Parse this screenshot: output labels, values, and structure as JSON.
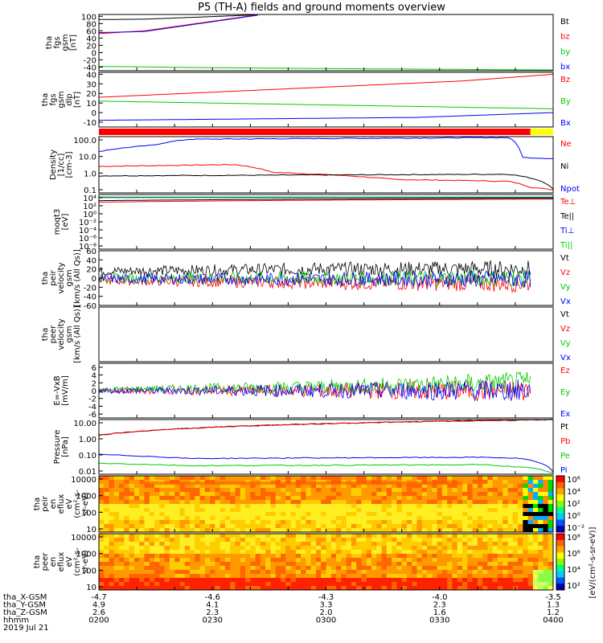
{
  "title": "P5 (TH-A) fields and ground moments overview",
  "chart_data": [
    {
      "type": "line",
      "panel": "fgs_gsm_mag",
      "ylabel": [
        "tha",
        "fgs",
        "gsm",
        "[nT]"
      ],
      "ylim": [
        -50,
        105
      ],
      "yticks": [
        100,
        80,
        60,
        40,
        20,
        0,
        -20,
        -40
      ],
      "series": [
        {
          "name": "Bt",
          "color": "#000000",
          "x": [
            0.0,
            0.1,
            0.35
          ],
          "y": [
            91,
            92,
            104
          ]
        },
        {
          "name": "bz",
          "color": "#ff0000",
          "x": [
            0.0,
            0.1,
            0.35
          ],
          "y": [
            52,
            60,
            104
          ]
        },
        {
          "name": "by",
          "color": "#00cc00",
          "x": [
            0.0,
            0.2,
            0.5,
            1.0
          ],
          "y": [
            -38,
            -41,
            -44,
            -48
          ]
        },
        {
          "name": "bx",
          "color": "#0000ff",
          "x": [
            0.0,
            0.1,
            0.35
          ],
          "y": [
            55,
            58,
            103
          ]
        }
      ]
    },
    {
      "type": "line",
      "panel": "fgs_gsm_components",
      "ylabel": [
        "tha",
        "fgs",
        "gsm",
        "dlp",
        "[nT]"
      ],
      "ylim": [
        -15,
        42
      ],
      "yticks": [
        40,
        30,
        20,
        10,
        0,
        -10
      ],
      "series": [
        {
          "name": "Bz",
          "color": "#ff0000",
          "x": [
            0.0,
            0.8,
            1.0
          ],
          "y": [
            16,
            33,
            40
          ]
        },
        {
          "name": "By",
          "color": "#00cc00",
          "x": [
            0.0,
            1.0
          ],
          "y": [
            12,
            4
          ]
        },
        {
          "name": "Bx",
          "color": "#0000ff",
          "x": [
            0.0,
            0.7,
            1.0
          ],
          "y": [
            -8,
            -5,
            0
          ]
        }
      ]
    },
    {
      "type": "line",
      "panel": "density",
      "ylabel": [
        "Density",
        "[1/cc]",
        "[cm-3]"
      ],
      "yscale": "log",
      "ylim": [
        0.05,
        300
      ],
      "yticks": [
        "100.0",
        "10.0",
        "1.0",
        "0.1"
      ],
      "series": [
        {
          "name": "Ne",
          "color": "#ff0000",
          "x": [
            0.0,
            0.3,
            0.38,
            0.65,
            0.9,
            0.95,
            1.0
          ],
          "y": [
            3,
            4,
            1.2,
            0.4,
            0.3,
            0.12,
            0.08
          ]
        },
        {
          "name": "Ni",
          "color": "#000000",
          "x": [
            0.0,
            0.5,
            0.9,
            0.95,
            1.0
          ],
          "y": [
            0.7,
            0.8,
            0.9,
            0.5,
            0.09
          ]
        },
        {
          "name": "Npot",
          "color": "#0000ff",
          "x": [
            0.0,
            0.12,
            0.2,
            0.9,
            0.93,
            1.0
          ],
          "y": [
            30,
            80,
            200,
            260,
            12,
            10
          ]
        }
      ]
    },
    {
      "type": "line",
      "panel": "temperature",
      "ylabel": [
        "moqt3",
        "[eV]"
      ],
      "yscale": "log",
      "ylim": [
        1e-09,
        30
      ],
      "yticks": [
        "10⁴",
        "10²",
        "10⁰",
        "10⁻²",
        "10⁻⁴",
        "10⁻⁶",
        "10⁻⁸"
      ],
      "series": [
        {
          "name": "Te⊥",
          "color": "#ff0000",
          "x": [
            0.0,
            1.0
          ],
          "y": [
            1,
            4
          ]
        },
        {
          "name": "Te||",
          "color": "#000000",
          "x": [
            0.0,
            1.0
          ],
          "y": [
            2,
            6
          ]
        },
        {
          "name": "Ti⊥",
          "color": "#0000ff",
          "x": [
            0.0,
            1.0
          ],
          "y": [
            8,
            8
          ]
        },
        {
          "name": "Ti||",
          "color": "#00cc00",
          "x": [
            0.0,
            1.0
          ],
          "y": [
            10,
            10
          ]
        }
      ]
    },
    {
      "type": "line",
      "panel": "peir_velocity",
      "ylabel": [
        "tha",
        "peir",
        "velocity",
        "gsm",
        "[km/s (All Qs)]"
      ],
      "ylim": [
        -60,
        60
      ],
      "yticks": [
        60,
        40,
        20,
        0,
        -20,
        -40,
        -60
      ],
      "series": [
        {
          "name": "Vt",
          "color": "#000000",
          "x": [
            0.0,
            0.5,
            0.95
          ],
          "y": [
            15,
            20,
            20
          ]
        },
        {
          "name": "Vz",
          "color": "#ff0000",
          "x": [
            0.0,
            0.5,
            0.95
          ],
          "y": [
            -5,
            -10,
            -12
          ]
        },
        {
          "name": "Vy",
          "color": "#00cc00",
          "x": [
            0.0,
            0.5,
            0.95
          ],
          "y": [
            0,
            0,
            0
          ]
        },
        {
          "name": "Vx",
          "color": "#0000ff",
          "x": [
            0.0,
            0.5,
            0.95
          ],
          "y": [
            -2,
            -2,
            -2
          ]
        }
      ]
    },
    {
      "type": "line",
      "panel": "peer_velocity",
      "ylabel": [
        "tha",
        "peer",
        "velocity",
        "gsm",
        "[km/s (All Qs)]"
      ],
      "series": [
        {
          "name": "Vt",
          "color": "#000000"
        },
        {
          "name": "Vz",
          "color": "#ff0000"
        },
        {
          "name": "Vy",
          "color": "#00cc00"
        },
        {
          "name": "Vx",
          "color": "#0000ff"
        }
      ]
    },
    {
      "type": "line",
      "panel": "electric_field",
      "ylabel": [
        "E=-VxB",
        "[mV/m]"
      ],
      "ylim": [
        -7,
        7
      ],
      "yticks": [
        6,
        4,
        2,
        0,
        -2,
        -4,
        -6
      ],
      "series": [
        {
          "name": "Ez",
          "color": "#ff0000",
          "x": [
            0.0,
            0.5,
            0.95
          ],
          "y": [
            0,
            0,
            0
          ]
        },
        {
          "name": "Ey",
          "color": "#00cc00",
          "x": [
            0.0,
            0.5,
            0.95
          ],
          "y": [
            0.3,
            1,
            2
          ]
        },
        {
          "name": "Ex",
          "color": "#0000ff",
          "x": [
            0.0,
            0.5,
            0.95
          ],
          "y": [
            0,
            0,
            0
          ]
        }
      ]
    },
    {
      "type": "line",
      "panel": "pressure",
      "ylabel": [
        "Pressure",
        "[nPa]"
      ],
      "yscale": "log",
      "ylim": [
        0.01,
        30
      ],
      "yticks": [
        "10.00",
        "1.00",
        "0.10",
        "0.01"
      ],
      "series": [
        {
          "name": "Pt",
          "color": "#000000",
          "x": [
            0.0,
            1.0
          ],
          "y": [
            3,
            30
          ]
        },
        {
          "name": "Pb",
          "color": "#ff0000",
          "x": [
            0.0,
            1.0
          ],
          "y": [
            3,
            30
          ]
        },
        {
          "name": "Pe",
          "color": "#00cc00",
          "x": [
            0.0,
            0.2,
            0.85,
            0.95,
            1.0
          ],
          "y": [
            0.05,
            0.035,
            0.04,
            0.025,
            0.012
          ]
        },
        {
          "name": "Pi",
          "color": "#0000ff",
          "x": [
            0.0,
            0.2,
            0.85,
            0.93,
            1.0
          ],
          "y": [
            0.18,
            0.1,
            0.12,
            0.1,
            0.015
          ]
        }
      ],
      "legend_note": "(All Qs)"
    },
    {
      "type": "heatmap",
      "panel": "peir_en_eflux",
      "ylabel": [
        "tha",
        "peir",
        "en",
        "eflux",
        "eV",
        "(cm²-s-",
        "sr-eV)"
      ],
      "yscale": "log",
      "ylim": [
        5,
        20000
      ],
      "yticks": [
        "10000",
        "1000",
        "100",
        "10"
      ]
    },
    {
      "type": "heatmap",
      "panel": "peer_en_eflux",
      "ylabel": [
        "tha",
        "peer",
        "en",
        "eflux",
        "eV",
        "(cm²-s-",
        "sr-eV)"
      ],
      "yscale": "log",
      "ylim": [
        5,
        20000
      ],
      "yticks": [
        "10000",
        "1000",
        "100",
        "10"
      ]
    }
  ],
  "colorbars": [
    {
      "ticks": [
        "10⁶",
        "10⁴",
        "10²",
        "10⁰",
        "10⁻²"
      ]
    },
    {
      "ticks": [
        "10⁸",
        "10⁶",
        "10⁴",
        "10²"
      ]
    }
  ],
  "colorbar_label": "[eV/(cm²-s-sr-eV)]",
  "colorbar_label_alt": "[eV/(cm²-s-sr-eV)]  (All Qs)",
  "xaxis": {
    "rows": [
      {
        "label": "tha_X-GSM",
        "values": [
          "-4.7",
          "-4.6",
          "-4.3",
          "-4.0",
          "-3.5"
        ]
      },
      {
        "label": "tha_Y-GSM",
        "values": [
          "4.9",
          "4.1",
          "3.3",
          "2.3",
          "1.3"
        ]
      },
      {
        "label": "tha_Z-GSM",
        "values": [
          "2.6",
          "2.3",
          "2.0",
          "1.6",
          "1.2"
        ]
      },
      {
        "label": "hhmm",
        "values": [
          "0200",
          "0230",
          "0300",
          "0330",
          "0400"
        ]
      }
    ],
    "date": "2019 Jul 21"
  }
}
